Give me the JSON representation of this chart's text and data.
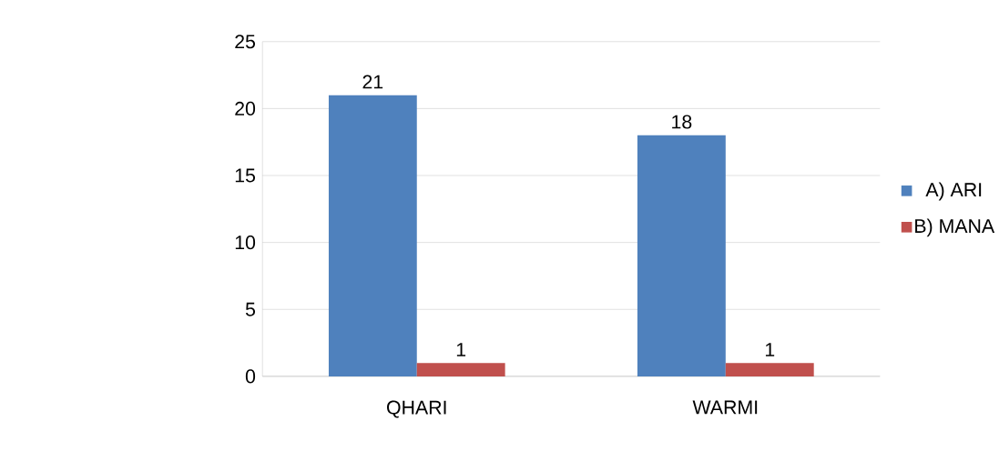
{
  "chart_data": {
    "type": "bar",
    "categories": [
      "QHARI",
      "WARMI"
    ],
    "series": [
      {
        "name": "A) ARI",
        "color": "#4f81bd",
        "values": [
          21,
          18
        ]
      },
      {
        "name": "B) MANA",
        "color": "#c0504d",
        "values": [
          1,
          1
        ]
      }
    ],
    "ylim": [
      0,
      25
    ],
    "yticks": [
      0,
      5,
      10,
      15,
      20,
      25
    ],
    "grid": "y",
    "legend": "right",
    "data_labels": true
  }
}
